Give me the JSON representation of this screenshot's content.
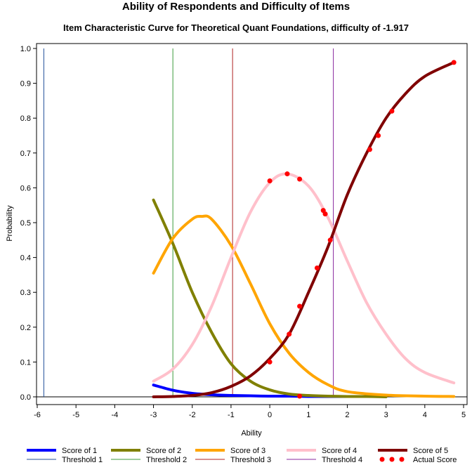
{
  "chart_data": {
    "type": "line",
    "title": "Ability of Respondents and Difficulty of Items",
    "subtitle": "Item Characteristic Curve for Theoretical Quant Foundations, difficulty of -1.917",
    "xlabel": "Ability",
    "ylabel": "Probability",
    "xlim": [
      -6,
      5
    ],
    "ylim": [
      0,
      1
    ],
    "x_ticks": [
      "-6",
      "-5",
      "-4",
      "-3",
      "-2",
      "-1",
      "0",
      "1",
      "2",
      "3",
      "4",
      "5"
    ],
    "y_ticks": [
      "0.0",
      "0.1",
      "0.2",
      "0.3",
      "0.4",
      "0.5",
      "0.6",
      "0.7",
      "0.8",
      "0.9",
      "1.0"
    ],
    "grid": false,
    "legend_position": "bottom",
    "series": [
      {
        "name": "Score of 1",
        "color": "#0000ff",
        "x": [
          -3.0,
          -2.5,
          -2.0,
          -1.5,
          -1.0,
          -0.5,
          0.0,
          0.5,
          1.0,
          1.5,
          2.0,
          2.8
        ],
        "y": [
          0.034,
          0.019,
          0.01,
          0.006,
          0.004,
          0.003,
          0.002,
          0.002,
          0.001,
          0.001,
          0.001,
          0.001
        ]
      },
      {
        "name": "Score of 2",
        "color": "#808000",
        "x": [
          -3.0,
          -2.5,
          -2.0,
          -1.5,
          -1.0,
          -0.5,
          0.0,
          0.5,
          1.0,
          1.5,
          2.0,
          2.5,
          3.0
        ],
        "y": [
          0.565,
          0.44,
          0.3,
          0.185,
          0.095,
          0.045,
          0.02,
          0.008,
          0.004,
          0.002,
          0.001,
          0.001,
          0.0
        ]
      },
      {
        "name": "Score of 3",
        "color": "#ffa500",
        "x": [
          -3.0,
          -2.5,
          -2.0,
          -1.75,
          -1.5,
          -1.0,
          -0.5,
          0.0,
          0.5,
          1.0,
          1.5,
          2.0,
          3.0,
          4.0,
          4.75
        ],
        "y": [
          0.355,
          0.455,
          0.51,
          0.518,
          0.51,
          0.435,
          0.325,
          0.21,
          0.125,
          0.07,
          0.035,
          0.015,
          0.005,
          0.002,
          0.001
        ]
      },
      {
        "name": "Score of 4",
        "color": "#ffc0cb",
        "x": [
          -3.0,
          -2.5,
          -2.0,
          -1.5,
          -1.0,
          -0.5,
          0.0,
          0.45,
          1.0,
          1.5,
          2.0,
          2.5,
          3.0,
          3.5,
          4.0,
          4.75
        ],
        "y": [
          0.045,
          0.08,
          0.15,
          0.26,
          0.4,
          0.53,
          0.615,
          0.64,
          0.605,
          0.515,
          0.39,
          0.27,
          0.18,
          0.11,
          0.07,
          0.04
        ]
      },
      {
        "name": "Score of 5",
        "color": "#800000",
        "x": [
          -3.0,
          -2.5,
          -2.0,
          -1.5,
          -1.0,
          -0.5,
          0.0,
          0.5,
          1.0,
          1.5,
          2.0,
          2.5,
          3.0,
          3.5,
          4.0,
          4.75
        ],
        "y": [
          0.0,
          0.001,
          0.004,
          0.012,
          0.03,
          0.06,
          0.11,
          0.18,
          0.3,
          0.43,
          0.58,
          0.7,
          0.8,
          0.87,
          0.92,
          0.96
        ]
      }
    ],
    "thresholds": [
      {
        "name": "Threshold 1",
        "x": -5.83,
        "color": "#1f4e9a"
      },
      {
        "name": "Threshold 2",
        "x": -2.5,
        "color": "#3c9b3c"
      },
      {
        "name": "Threshold 3",
        "x": -0.96,
        "color": "#b02020"
      },
      {
        "name": "Threshold 4",
        "x": 1.64,
        "color": "#8a2aa0"
      }
    ],
    "actual_scores": {
      "name": "Actual Score",
      "color": "#ff0000",
      "points": [
        {
          "x": 0.0,
          "y": 0.62
        },
        {
          "x": 0.45,
          "y": 0.64
        },
        {
          "x": 0.77,
          "y": 0.625
        },
        {
          "x": 1.38,
          "y": 0.535
        },
        {
          "x": 1.43,
          "y": 0.525
        },
        {
          "x": 0.0,
          "y": 0.1
        },
        {
          "x": 0.5,
          "y": 0.18
        },
        {
          "x": 0.77,
          "y": 0.26
        },
        {
          "x": 1.22,
          "y": 0.37
        },
        {
          "x": 1.56,
          "y": 0.45
        },
        {
          "x": 2.58,
          "y": 0.71
        },
        {
          "x": 2.8,
          "y": 0.75
        },
        {
          "x": 3.15,
          "y": 0.82
        },
        {
          "x": 4.75,
          "y": 0.96
        },
        {
          "x": 0.77,
          "y": 0.002
        }
      ]
    }
  }
}
